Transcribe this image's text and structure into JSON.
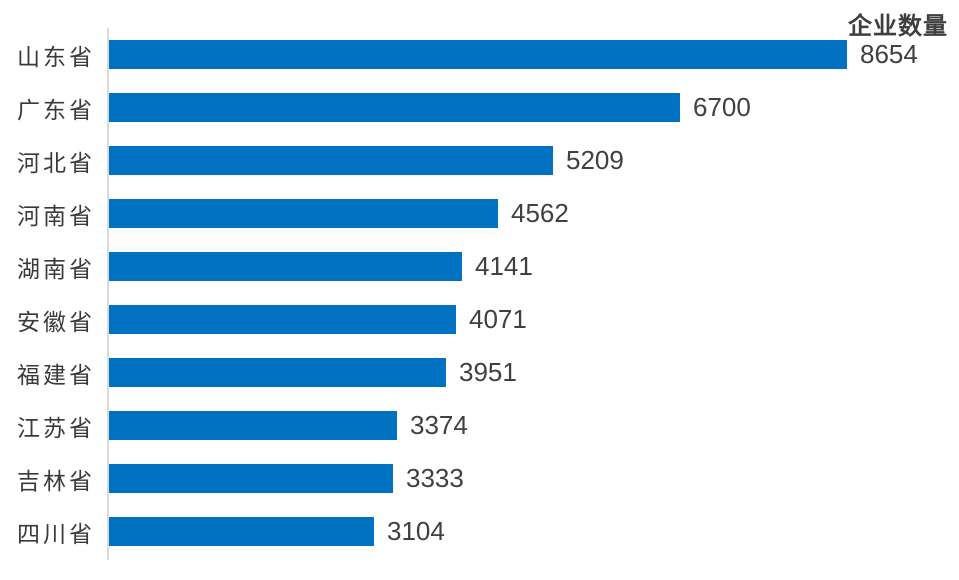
{
  "chart_title": "企业数量",
  "colors": {
    "bar": "#0171c1",
    "category_label": "#3a3a3a",
    "value_label": "#404040",
    "title": "#3f3f3f",
    "axis_line": "#d9d9d9",
    "background": "#ffffff"
  },
  "chart_data": {
    "type": "bar",
    "orientation": "horizontal",
    "title": "企业数量",
    "xlabel": "",
    "ylabel": "",
    "categories": [
      "山东省",
      "广东省",
      "河北省",
      "河南省",
      "湖南省",
      "安徽省",
      "福建省",
      "江苏省",
      "吉林省",
      "四川省"
    ],
    "values": [
      8654,
      6700,
      5209,
      4562,
      4141,
      4071,
      3951,
      3374,
      3333,
      3104
    ],
    "xlim": [
      0,
      8654
    ],
    "value_labels_shown": true,
    "grid": false,
    "legend_position": "top-right",
    "sort_order": "descending"
  }
}
